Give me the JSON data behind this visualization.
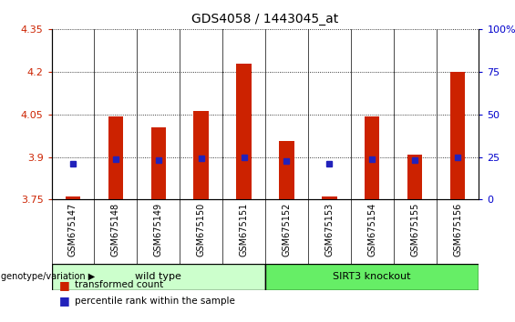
{
  "title": "GDS4058 / 1443045_at",
  "samples": [
    "GSM675147",
    "GSM675148",
    "GSM675149",
    "GSM675150",
    "GSM675151",
    "GSM675152",
    "GSM675153",
    "GSM675154",
    "GSM675155",
    "GSM675156"
  ],
  "transformed_counts": [
    3.762,
    4.042,
    4.005,
    4.063,
    4.228,
    3.956,
    3.762,
    4.042,
    3.908,
    4.198
  ],
  "percentile_rank_values": [
    3.877,
    3.893,
    3.889,
    3.895,
    3.9,
    3.887,
    3.877,
    3.893,
    3.888,
    3.9
  ],
  "ylim": [
    3.75,
    4.35
  ],
  "yticks": [
    3.75,
    3.9,
    4.05,
    4.2,
    4.35
  ],
  "y2ticks": [
    0,
    25,
    50,
    75,
    100
  ],
  "bar_color": "#cc2200",
  "dot_color": "#2222bb",
  "wild_type_samples": 5,
  "wild_type_label": "wild type",
  "knockout_label": "SIRT3 knockout",
  "group_bg_wt": "#ccffcc",
  "group_bg_ko": "#66ee66",
  "tick_bg": "#d8d8d8",
  "xlabel_color": "#cc2200",
  "y2label_color": "#0000cc",
  "bar_width": 0.35,
  "legend_tc": "transformed count",
  "legend_pr": "percentile rank within the sample",
  "genotype_label": "genotype/variation"
}
